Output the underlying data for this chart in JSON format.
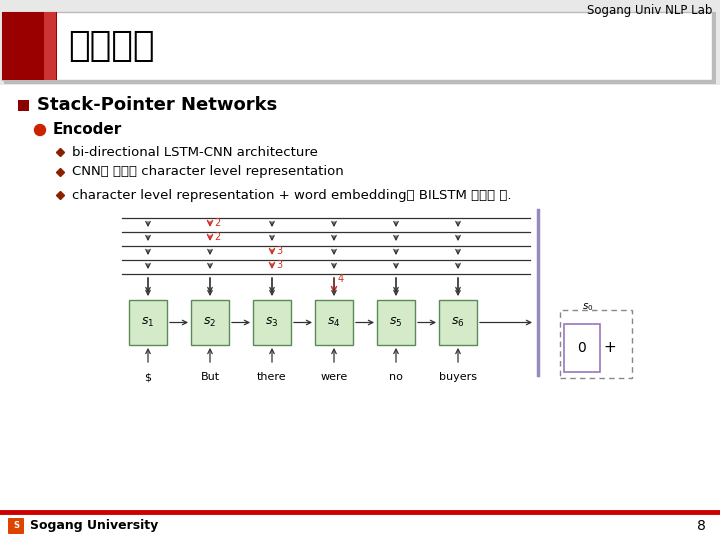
{
  "bg_color": "#ffffff",
  "header_bg": "#ebebeb",
  "header_bar_color": "#9B0000",
  "header_text": "기존연구",
  "top_right_text": "Sogang Univ NLP Lab",
  "title_bullet_color": "#8B0000",
  "title_text": "Stack-Pointer Networks",
  "level2_bullet_color": "#cc2200",
  "level2_text": "Encoder",
  "level3_bullet_color": "#8B2000",
  "level3_items": [
    "bi-directional LSTM-CNN architecture",
    "CNN을 통해서 character level representation",
    "character level representation + word embedding이 BILSTM 입력이 됨."
  ],
  "footer_line_color": "#cc0000",
  "footer_text": "Sogang University",
  "footer_page": "8",
  "box_color": "#d4eac8",
  "box_edge": "#5a8a5a",
  "box_labels": [
    "$s_1$",
    "$s_2$",
    "$s_3$",
    "$s_4$",
    "$s_5$",
    "$s_6$"
  ],
  "word_labels": [
    "$",
    "But",
    "there",
    "were",
    "no",
    "buyers"
  ],
  "red_arrow_color": "#cc3322",
  "line_color": "#333333",
  "purple_line_color": "#9988bb"
}
